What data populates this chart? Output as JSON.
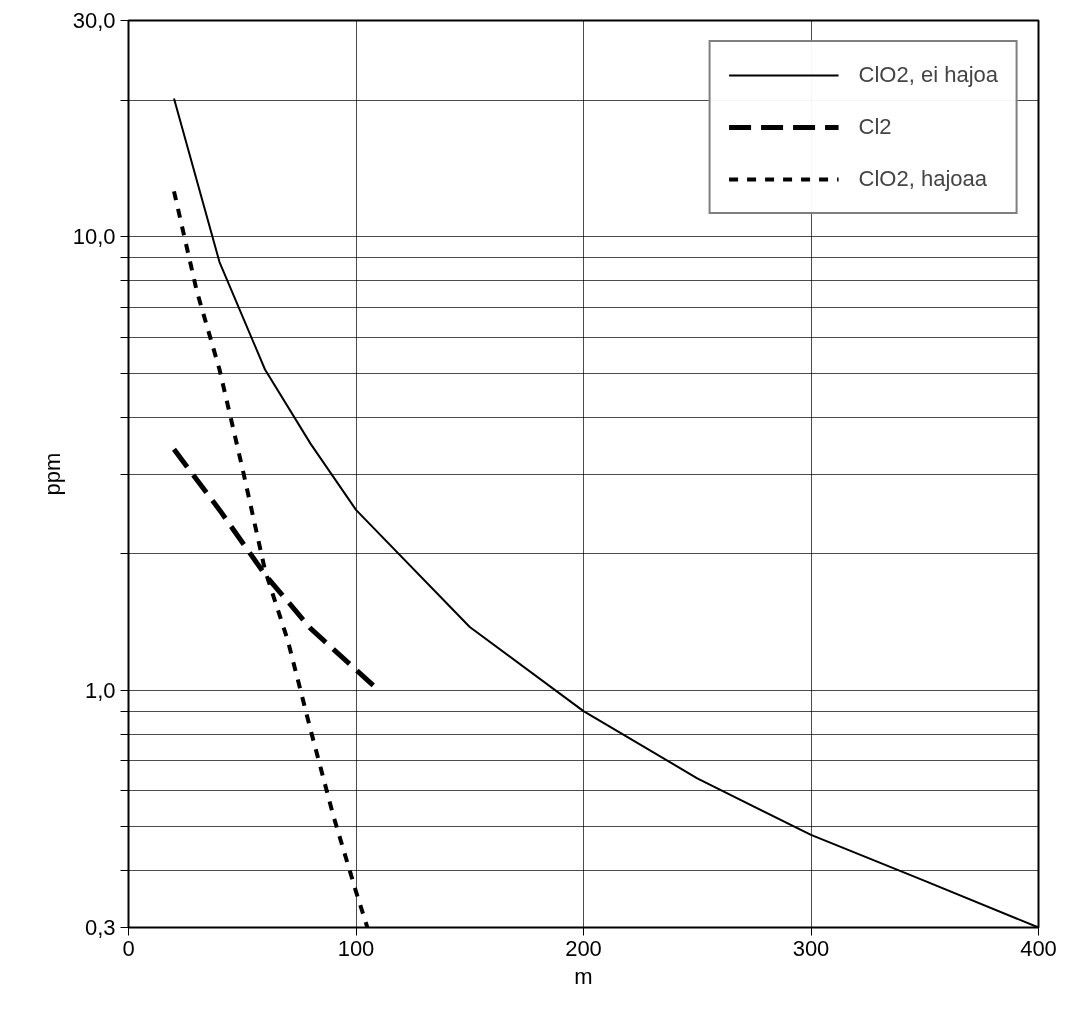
{
  "chart_data": {
    "type": "line",
    "xlabel": "m",
    "ylabel": "ppm",
    "log": "y",
    "grid": true,
    "legend": "top right",
    "xlim": [
      0,
      400
    ],
    "xticks": [
      0,
      100,
      200,
      300,
      400
    ],
    "ylim": [
      0.3,
      30
    ],
    "yticks": [
      {
        "value": 0.3,
        "label": "0,3"
      },
      {
        "value": 0.4,
        "label": null
      },
      {
        "value": 0.5,
        "label": null
      },
      {
        "value": 0.6,
        "label": null
      },
      {
        "value": 0.7,
        "label": null
      },
      {
        "value": 0.8,
        "label": null
      },
      {
        "value": 0.9,
        "label": null
      },
      {
        "value": 1,
        "label": "1,0"
      },
      {
        "value": 2,
        "label": null
      },
      {
        "value": 3,
        "label": null
      },
      {
        "value": 4,
        "label": null
      },
      {
        "value": 5,
        "label": null
      },
      {
        "value": 6,
        "label": null
      },
      {
        "value": 7,
        "label": null
      },
      {
        "value": 8,
        "label": null
      },
      {
        "value": 9,
        "label": null
      },
      {
        "value": 10,
        "label": "10,0"
      },
      {
        "value": 20,
        "label": null
      },
      {
        "value": 30,
        "label": "30,0"
      }
    ],
    "series": [
      {
        "name": "ClO2, ei hajoa",
        "color": "#000000",
        "line_style": "solid",
        "x": [
          20,
          40,
          60,
          80,
          100,
          150,
          200,
          250,
          300,
          350,
          400
        ],
        "values": [
          20.2,
          8.8,
          5.1,
          3.5,
          2.5,
          1.38,
          0.9,
          0.64,
          0.48,
          0.38,
          0.3
        ]
      },
      {
        "name": "Cl2",
        "color": "#000000",
        "line_style": "dashed",
        "x": [
          20,
          40,
          60,
          80,
          110
        ],
        "values": [
          3.4,
          2.5,
          1.8,
          1.37,
          1.0
        ]
      },
      {
        "name": "ClO2, hajoaa",
        "color": "#000000",
        "line_style": "dotted",
        "x": [
          20,
          30,
          40,
          50,
          60,
          70,
          80,
          90,
          100,
          105
        ],
        "values": [
          12.6,
          7.6,
          5.1,
          3.1,
          1.84,
          1.29,
          0.82,
          0.53,
          0.36,
          0.3
        ]
      }
    ]
  }
}
